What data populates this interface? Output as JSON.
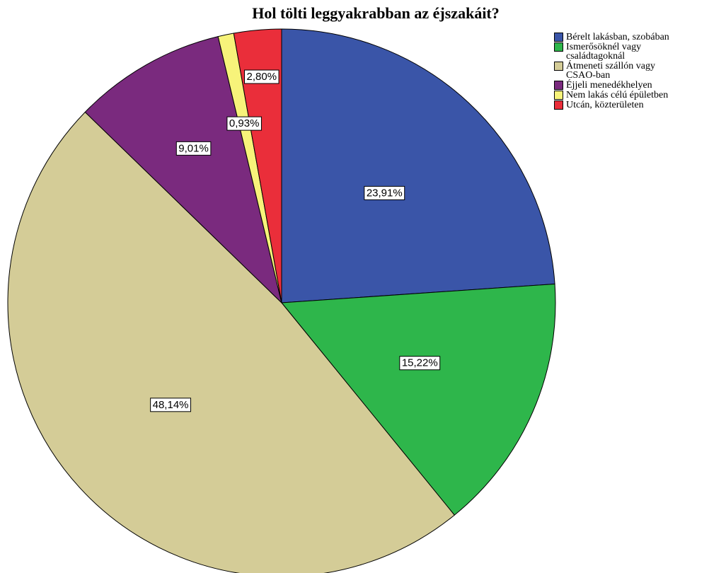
{
  "chart_data": {
    "type": "pie",
    "title": "Hol tölti leggyakrabban az éjszakáit?",
    "legend_position": "right",
    "slices": [
      {
        "label": "Bérelt lakásban, szobában",
        "value": 23.91,
        "display": "23,91%",
        "color": "#3a55a8"
      },
      {
        "label": "Ismerősöknél vagy\ncsaládtagoknál",
        "value": 15.22,
        "display": "15,22%",
        "color": "#2eb64b"
      },
      {
        "label": "Átmeneti szállón vagy\nCSAO-ban",
        "value": 48.14,
        "display": "48,14%",
        "color": "#d4cc97"
      },
      {
        "label": "Éjjeli menedékhelyen",
        "value": 9.01,
        "display": "9,01%",
        "color": "#7a2a7e"
      },
      {
        "label": "Nem lakás célú épületben",
        "value": 0.93,
        "display": "0,93%",
        "color": "#f7f37a"
      },
      {
        "label": "Utcán, közterületen",
        "value": 2.8,
        "display": "2,80%",
        "color": "#ea2e3a"
      }
    ]
  }
}
